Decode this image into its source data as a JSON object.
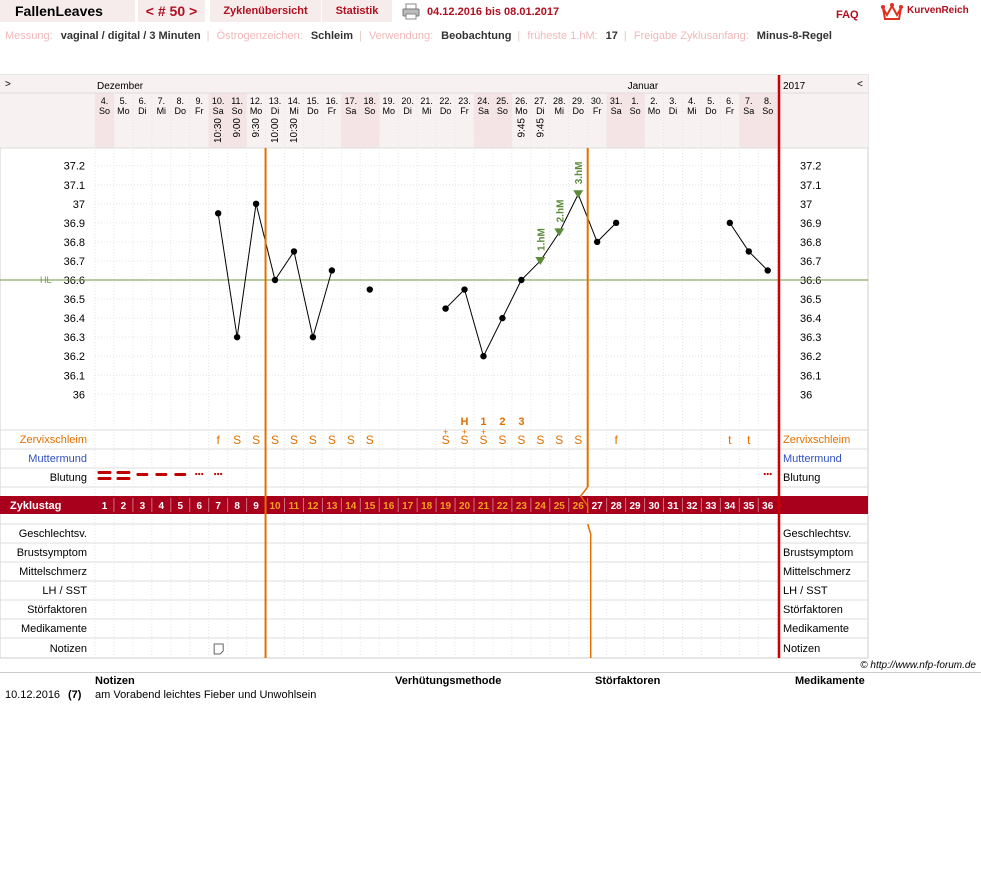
{
  "header": {
    "username": "FallenLeaves",
    "cycle_nav": "< # 50 >",
    "cycle_overview": "Zyklenübersicht",
    "statistics": "Statistik",
    "date_range": "04.12.2016 bis 08.01.2017",
    "faq": "FAQ",
    "brand": "KurvenReich"
  },
  "info": [
    {
      "key": "Messung:",
      "value": "vaginal / digital / 3 Minuten"
    },
    {
      "key": "Östrogenzeichen:",
      "value": "Schleim"
    },
    {
      "key": "Verwendung:",
      "value": "Beobachtung"
    },
    {
      "key": "früheste 1.hM:",
      "value": "17"
    },
    {
      "key": "Freigabe Zyklusanfang:",
      "value": "Minus-8-Regel"
    }
  ],
  "calendar": {
    "nav_left": ">",
    "nav_right": "<",
    "month_start": "Dezember",
    "month_second": "Januar",
    "year_label": "2017",
    "dates": [
      "4.",
      "5.",
      "6.",
      "7.",
      "8.",
      "9.",
      "10.",
      "11.",
      "12.",
      "13.",
      "14.",
      "15.",
      "16.",
      "17.",
      "18.",
      "19.",
      "20.",
      "21.",
      "22.",
      "23.",
      "24.",
      "25.",
      "26.",
      "27.",
      "28.",
      "29.",
      "30.",
      "31.",
      "1.",
      "2.",
      "3.",
      "4.",
      "5.",
      "6.",
      "7.",
      "8."
    ],
    "weekdays": [
      "So",
      "Mo",
      "Di",
      "Mi",
      "Do",
      "Fr",
      "Sa",
      "So",
      "Mo",
      "Di",
      "Mi",
      "Do",
      "Fr",
      "Sa",
      "So",
      "Mo",
      "Di",
      "Mi",
      "Do",
      "Fr",
      "Sa",
      "So",
      "Mo",
      "Di",
      "Mi",
      "Do",
      "Fr",
      "Sa",
      "So",
      "Mo",
      "Di",
      "Mi",
      "Do",
      "Fr",
      "Sa",
      "So"
    ],
    "weekend_days": [
      1,
      7,
      8,
      14,
      15,
      21,
      22,
      28,
      29,
      35,
      36
    ],
    "times": {
      "7": "10:30",
      "8": "9:00",
      "9": "9:30",
      "10": "10:00",
      "11": "10:30",
      "23": "9:45",
      "24": "9:45"
    }
  },
  "temperature": {
    "y_ticks": [
      "37.2",
      "37.1",
      "37",
      "36.9",
      "36.8",
      "36.7",
      "36.6",
      "36.5",
      "36.4",
      "36.3",
      "36.2",
      "36.1",
      "36"
    ],
    "hl_label": "HL",
    "hl_value": 36.6,
    "values": [
      null,
      null,
      null,
      null,
      null,
      null,
      36.95,
      36.3,
      37.0,
      36.6,
      36.75,
      36.3,
      36.65,
      null,
      36.55,
      null,
      null,
      null,
      36.45,
      36.55,
      36.2,
      36.4,
      36.6,
      36.7,
      36.85,
      37.05,
      36.8,
      36.9,
      null,
      null,
      null,
      null,
      null,
      36.9,
      36.75,
      36.65
    ],
    "high_markers": [
      {
        "day": 24,
        "label": "1.hM"
      },
      {
        "day": 25,
        "label": "2.hM"
      },
      {
        "day": 26,
        "label": "3.hM"
      }
    ],
    "peak_labels": [
      {
        "day": 20,
        "label": "H"
      },
      {
        "day": 21,
        "label": "1"
      },
      {
        "day": 22,
        "label": "2"
      },
      {
        "day": 23,
        "label": "3"
      }
    ]
  },
  "rows": {
    "cervix": "Zervixschleim",
    "mumu": "Muttermund",
    "bleeding": "Blutung",
    "cycleday": "Zyklustag",
    "intercourse": "Geschlechtsv.",
    "breast": "Brustsymptom",
    "midpain": "Mittelschmerz",
    "lh": "LH / SST",
    "disturb": "Störfaktoren",
    "meds": "Medikamente",
    "notes": "Notizen"
  },
  "cervix_marks": {
    "7": "f",
    "8": "S",
    "9": "S",
    "10": "S",
    "11": "S",
    "12": "S",
    "13": "S",
    "14": "S",
    "15": "S",
    "19": "S+",
    "20": "S+",
    "21": "S+",
    "22": "S",
    "23": "S",
    "24": "S",
    "25": "S",
    "26": "S",
    "28": "f",
    "34": "t",
    "35": "t"
  },
  "bleeding_marks": {
    "1": "heavy",
    "2": "heavy",
    "3": "medium",
    "4": "medium",
    "5": "medium",
    "6": "light",
    "7": "light",
    "36": "light"
  },
  "cycle_days": [
    "1",
    "2",
    "3",
    "4",
    "5",
    "6",
    "7",
    "8",
    "9",
    "10",
    "11",
    "12",
    "13",
    "14",
    "15",
    "16",
    "17",
    "18",
    "19",
    "20",
    "21",
    "22",
    "23",
    "24",
    "25",
    "26",
    "27",
    "28",
    "29",
    "30",
    "31",
    "32",
    "33",
    "34",
    "35",
    "36"
  ],
  "copyright": "© http://www.nfp-forum.de",
  "notes_table": {
    "headers": [
      "Notizen",
      "Verhütungsmethode",
      "Störfaktoren",
      "Medikamente"
    ],
    "rows": [
      {
        "date": "10.12.2016",
        "day": "(7)",
        "text": "am Vorabend leichtes Fieber und Unwohlsein"
      }
    ]
  },
  "colors": {
    "accent": "#b01020",
    "cycleday_bar": "#a8001c",
    "orange": "#e07000",
    "blue": "#3050c0",
    "hl_line": "#6a9a40",
    "marker_green": "#5a8a3a",
    "weekend_bg": "#f4e4e6"
  }
}
